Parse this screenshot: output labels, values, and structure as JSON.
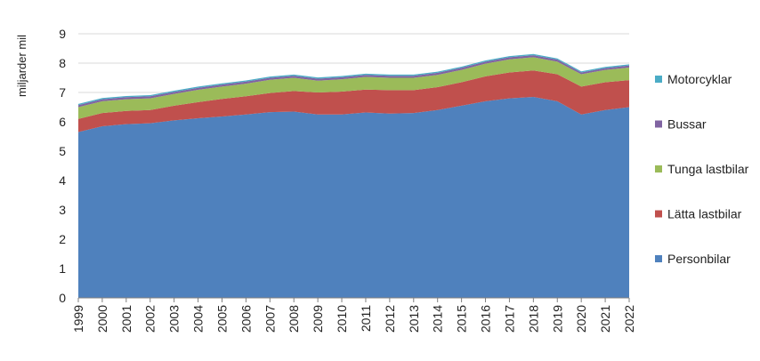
{
  "chart_data": {
    "type": "area",
    "stacked": true,
    "title": "",
    "xlabel": "",
    "ylabel": "miljarder mil",
    "ylim": [
      0,
      9
    ],
    "yticks": [
      0,
      1,
      2,
      3,
      4,
      5,
      6,
      7,
      8,
      9
    ],
    "grid": true,
    "legend_position": "right",
    "categories": [
      "1999",
      "2000",
      "2001",
      "2002",
      "2003",
      "2004",
      "2005",
      "2006",
      "2007",
      "2008",
      "2009",
      "2010",
      "2011",
      "2012",
      "2013",
      "2014",
      "2015",
      "2016",
      "2017",
      "2018",
      "2019",
      "2020",
      "2021",
      "2022"
    ],
    "series": [
      {
        "name": "Personbilar",
        "color": "#4f81bd",
        "values": [
          5.65,
          5.85,
          5.92,
          5.95,
          6.05,
          6.12,
          6.18,
          6.25,
          6.33,
          6.35,
          6.25,
          6.25,
          6.32,
          6.28,
          6.3,
          6.4,
          6.55,
          6.7,
          6.8,
          6.85,
          6.7,
          6.25,
          6.4,
          6.5
        ]
      },
      {
        "name": "Lätta lastbilar",
        "color": "#c0504d",
        "values": [
          0.45,
          0.45,
          0.45,
          0.45,
          0.5,
          0.55,
          0.6,
          0.62,
          0.65,
          0.7,
          0.75,
          0.78,
          0.78,
          0.8,
          0.78,
          0.78,
          0.8,
          0.85,
          0.88,
          0.9,
          0.92,
          0.95,
          0.95,
          0.92
        ]
      },
      {
        "name": "Tunga lastbilar",
        "color": "#9bbb59",
        "values": [
          0.4,
          0.4,
          0.4,
          0.4,
          0.4,
          0.42,
          0.42,
          0.43,
          0.45,
          0.45,
          0.4,
          0.42,
          0.43,
          0.42,
          0.42,
          0.42,
          0.42,
          0.43,
          0.45,
          0.45,
          0.43,
          0.42,
          0.42,
          0.43
        ]
      },
      {
        "name": "Bussar",
        "color": "#8064a2",
        "values": [
          0.07,
          0.07,
          0.07,
          0.07,
          0.07,
          0.07,
          0.07,
          0.07,
          0.07,
          0.07,
          0.07,
          0.07,
          0.07,
          0.07,
          0.07,
          0.07,
          0.07,
          0.07,
          0.07,
          0.07,
          0.07,
          0.06,
          0.06,
          0.07
        ]
      },
      {
        "name": "Motorcyklar",
        "color": "#4bacc6",
        "values": [
          0.04,
          0.04,
          0.04,
          0.04,
          0.04,
          0.04,
          0.04,
          0.04,
          0.04,
          0.04,
          0.04,
          0.04,
          0.04,
          0.04,
          0.04,
          0.04,
          0.04,
          0.04,
          0.04,
          0.04,
          0.04,
          0.04,
          0.04,
          0.04
        ]
      }
    ],
    "legend_order": [
      "Motorcyklar",
      "Bussar",
      "Tunga lastbilar",
      "Lätta lastbilar",
      "Personbilar"
    ]
  },
  "colors": {
    "grid": "#d9d9d9",
    "axis": "#7f7f7f",
    "text": "#222222"
  }
}
